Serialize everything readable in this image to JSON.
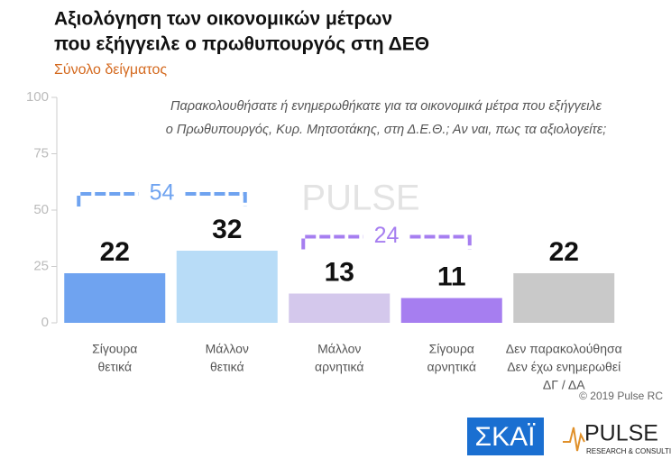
{
  "chart_data": {
    "type": "bar",
    "title": [
      "Αξιολόγηση των οικονομικών μέτρων",
      "που εξήγγειλε ο πρωθυπουργός στη ΔΕΘ"
    ],
    "subtitle": "Σύνολο δείγματος",
    "annotation": [
      "Παρακολουθήσατε ή ενημερωθήκατε για τα οικονομικά μέτρα που εξήγγειλε",
      "ο Πρωθυπουργός, Κυρ. Μητσοτάκης, στη Δ.Ε.Θ.; Αν ναι, πως τα αξιολογείτε;"
    ],
    "categories": [
      [
        "Σίγουρα",
        "θετικά"
      ],
      [
        "Μάλλον",
        "θετικά"
      ],
      [
        "Μάλλον",
        "αρνητικά"
      ],
      [
        "Σίγουρα",
        "αρνητικά"
      ],
      [
        "Δεν παρακολούθησα",
        "Δεν έχω ενημερωθεί",
        "ΔΓ / ΔΑ"
      ]
    ],
    "values": [
      22,
      32,
      13,
      11,
      22
    ],
    "colors": [
      "#6fa3f0",
      "#b8dcf7",
      "#d4c8ec",
      "#a67ef0",
      "#c9c9c9"
    ],
    "groups": [
      {
        "value": 54,
        "color": "#6fa3f0",
        "members": [
          0,
          1
        ]
      },
      {
        "value": 24,
        "color": "#a67ef0",
        "members": [
          2,
          3
        ]
      }
    ],
    "ylim": [
      0,
      100
    ],
    "yticks": [
      0,
      25,
      50,
      75,
      100
    ],
    "grid": false,
    "watermark": "PULSE",
    "copyright": "© 2019 Pulse RC",
    "logos": {
      "skai": "ΣΚΑΪ",
      "pulse": "PULSE",
      "pulse_sub": "RESEARCH & CONSULTING"
    }
  }
}
